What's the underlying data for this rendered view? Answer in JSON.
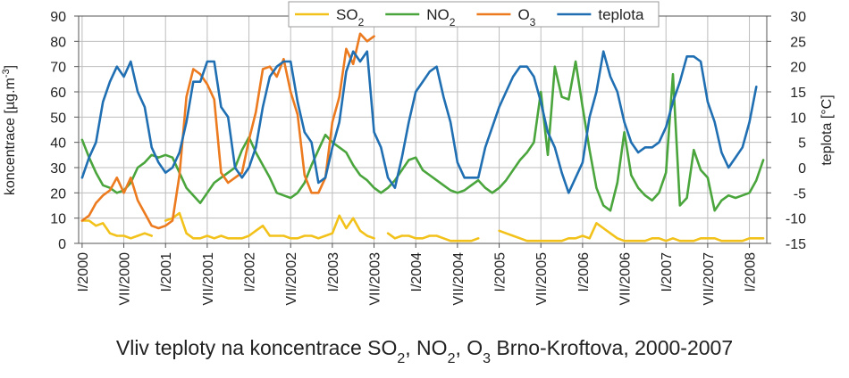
{
  "chart_data": {
    "type": "line",
    "caption": "Vliv teploty na koncentrace SO2, NO2, O3 Brno-Kroftova, 2000-2007",
    "caption_parts": [
      {
        "text": "Vliv teploty na koncentrace SO"
      },
      {
        "text": "2",
        "sub": true
      },
      {
        "text": ", NO"
      },
      {
        "text": "2",
        "sub": true
      },
      {
        "text": ", O"
      },
      {
        "text": "3",
        "sub": true
      },
      {
        "text": " Brno-Kroftova, 2000-2007"
      }
    ],
    "ylabel_left": "koncentrace [µg.m-3]",
    "ylabel_left_parts": [
      {
        "text": "koncentrace [µg.m"
      },
      {
        "text": "-3",
        "sup": true
      },
      {
        "text": "]"
      }
    ],
    "ylabel_right": "teplota [°C]",
    "y_left_range": [
      0,
      90
    ],
    "y_left_ticks": [
      0,
      10,
      20,
      30,
      40,
      50,
      60,
      70,
      80,
      90
    ],
    "y_right_range": [
      -15,
      30
    ],
    "y_right_ticks": [
      -15,
      -10,
      -5,
      0,
      5,
      10,
      15,
      20,
      25,
      30
    ],
    "grid": true,
    "legend_position": "top",
    "x_labels": [
      {
        "index": 0,
        "label": "I/2000"
      },
      {
        "index": 6,
        "label": "VII/2000"
      },
      {
        "index": 12,
        "label": "I/2001"
      },
      {
        "index": 18,
        "label": "VII/2001"
      },
      {
        "index": 24,
        "label": "I/2002"
      },
      {
        "index": 30,
        "label": "VII/2002"
      },
      {
        "index": 36,
        "label": "I/2003"
      },
      {
        "index": 42,
        "label": "VII/2003"
      },
      {
        "index": 48,
        "label": "I/2004"
      },
      {
        "index": 54,
        "label": "VII/2004"
      },
      {
        "index": 60,
        "label": "I/2005"
      },
      {
        "index": 66,
        "label": "VII/2005"
      },
      {
        "index": 72,
        "label": "I/2006"
      },
      {
        "index": 78,
        "label": "VII/2006"
      },
      {
        "index": 84,
        "label": "I/2007"
      },
      {
        "index": 90,
        "label": "VII/2007"
      },
      {
        "index": 96,
        "label": "I/2008"
      }
    ],
    "series": [
      {
        "name": "SO2",
        "legend_parts": [
          {
            "text": "SO"
          },
          {
            "text": "2",
            "sub": true
          }
        ],
        "color": "#f2c21b",
        "axis": "left",
        "values": [
          9,
          9,
          7,
          8,
          4,
          3,
          3,
          2,
          3,
          4,
          3,
          null,
          9,
          10,
          12,
          4,
          2,
          2,
          3,
          2,
          3,
          2,
          2,
          2,
          3,
          5,
          7,
          3,
          3,
          3,
          2,
          2,
          3,
          3,
          2,
          3,
          4,
          11,
          6,
          10,
          5,
          3,
          2,
          null,
          4,
          2,
          3,
          3,
          2,
          2,
          3,
          3,
          2,
          1,
          1,
          1,
          1,
          2,
          null,
          null,
          5,
          4,
          3,
          2,
          1,
          1,
          1,
          1,
          1,
          1,
          2,
          2,
          3,
          2,
          8,
          6,
          4,
          2,
          1,
          1,
          1,
          1,
          2,
          2,
          1,
          2,
          1,
          1,
          1,
          2,
          2,
          2,
          1,
          1,
          1,
          1,
          2,
          2,
          2,
          null,
          1
        ]
      },
      {
        "name": "NO2",
        "legend_parts": [
          {
            "text": "NO"
          },
          {
            "text": "2",
            "sub": true
          }
        ],
        "color": "#4aa53d",
        "axis": "left",
        "values": [
          41,
          34,
          28,
          23,
          22,
          20,
          21,
          24,
          30,
          32,
          35,
          34,
          35,
          34,
          28,
          22,
          19,
          16,
          20,
          24,
          26,
          28,
          30,
          37,
          42,
          36,
          31,
          26,
          20,
          19,
          18,
          20,
          24,
          31,
          37,
          43,
          40,
          38,
          36,
          31,
          27,
          25,
          22,
          20,
          22,
          25,
          29,
          33,
          34,
          29,
          27,
          25,
          23,
          21,
          20,
          21,
          23,
          25,
          22,
          20,
          22,
          25,
          29,
          33,
          36,
          40,
          60,
          35,
          70,
          58,
          57,
          72,
          54,
          37,
          22,
          15,
          13,
          24,
          44,
          27,
          22,
          19,
          17,
          20,
          28,
          67,
          15,
          18,
          37,
          29,
          26,
          13,
          17,
          19,
          18,
          19,
          20,
          25,
          33
        ]
      },
      {
        "name": "O3",
        "legend_parts": [
          {
            "text": "O"
          },
          {
            "text": "3",
            "sub": true
          }
        ],
        "color": "#ec7a1f",
        "axis": "left",
        "values": [
          9,
          11,
          16,
          19,
          21,
          26,
          20,
          26,
          17,
          12,
          7,
          6,
          7,
          9,
          27,
          58,
          69,
          67,
          63,
          57,
          28,
          24,
          26,
          28,
          41,
          52,
          69,
          70,
          66,
          73,
          60,
          51,
          27,
          20,
          20,
          26,
          48,
          58,
          77,
          71,
          83,
          80,
          82
        ]
      },
      {
        "name": "teplota",
        "legend_parts": [
          {
            "text": "teplota"
          }
        ],
        "color": "#1f6fb2",
        "axis": "right",
        "values": [
          -2,
          2,
          5,
          13,
          17,
          20,
          18,
          21,
          15,
          12,
          4,
          1,
          -1,
          0,
          3,
          9,
          17,
          17,
          21,
          21,
          12,
          10,
          0,
          -2,
          0,
          4,
          12,
          18,
          20,
          21,
          21,
          13,
          7,
          5,
          -3,
          -2,
          4,
          9,
          19,
          23,
          21,
          23,
          7,
          4,
          -2,
          -4,
          2,
          9,
          15,
          17,
          19,
          20,
          14,
          9,
          1,
          -2,
          -2,
          -2,
          4,
          8,
          12,
          15,
          18,
          20,
          20,
          18,
          13,
          7,
          4,
          -1,
          -5,
          -2,
          1,
          10,
          15,
          23,
          18,
          15,
          9,
          5,
          3,
          4,
          4,
          5,
          8,
          13,
          17,
          22,
          22,
          21,
          13,
          9,
          3,
          0,
          2,
          4,
          9,
          16
        ]
      }
    ]
  }
}
